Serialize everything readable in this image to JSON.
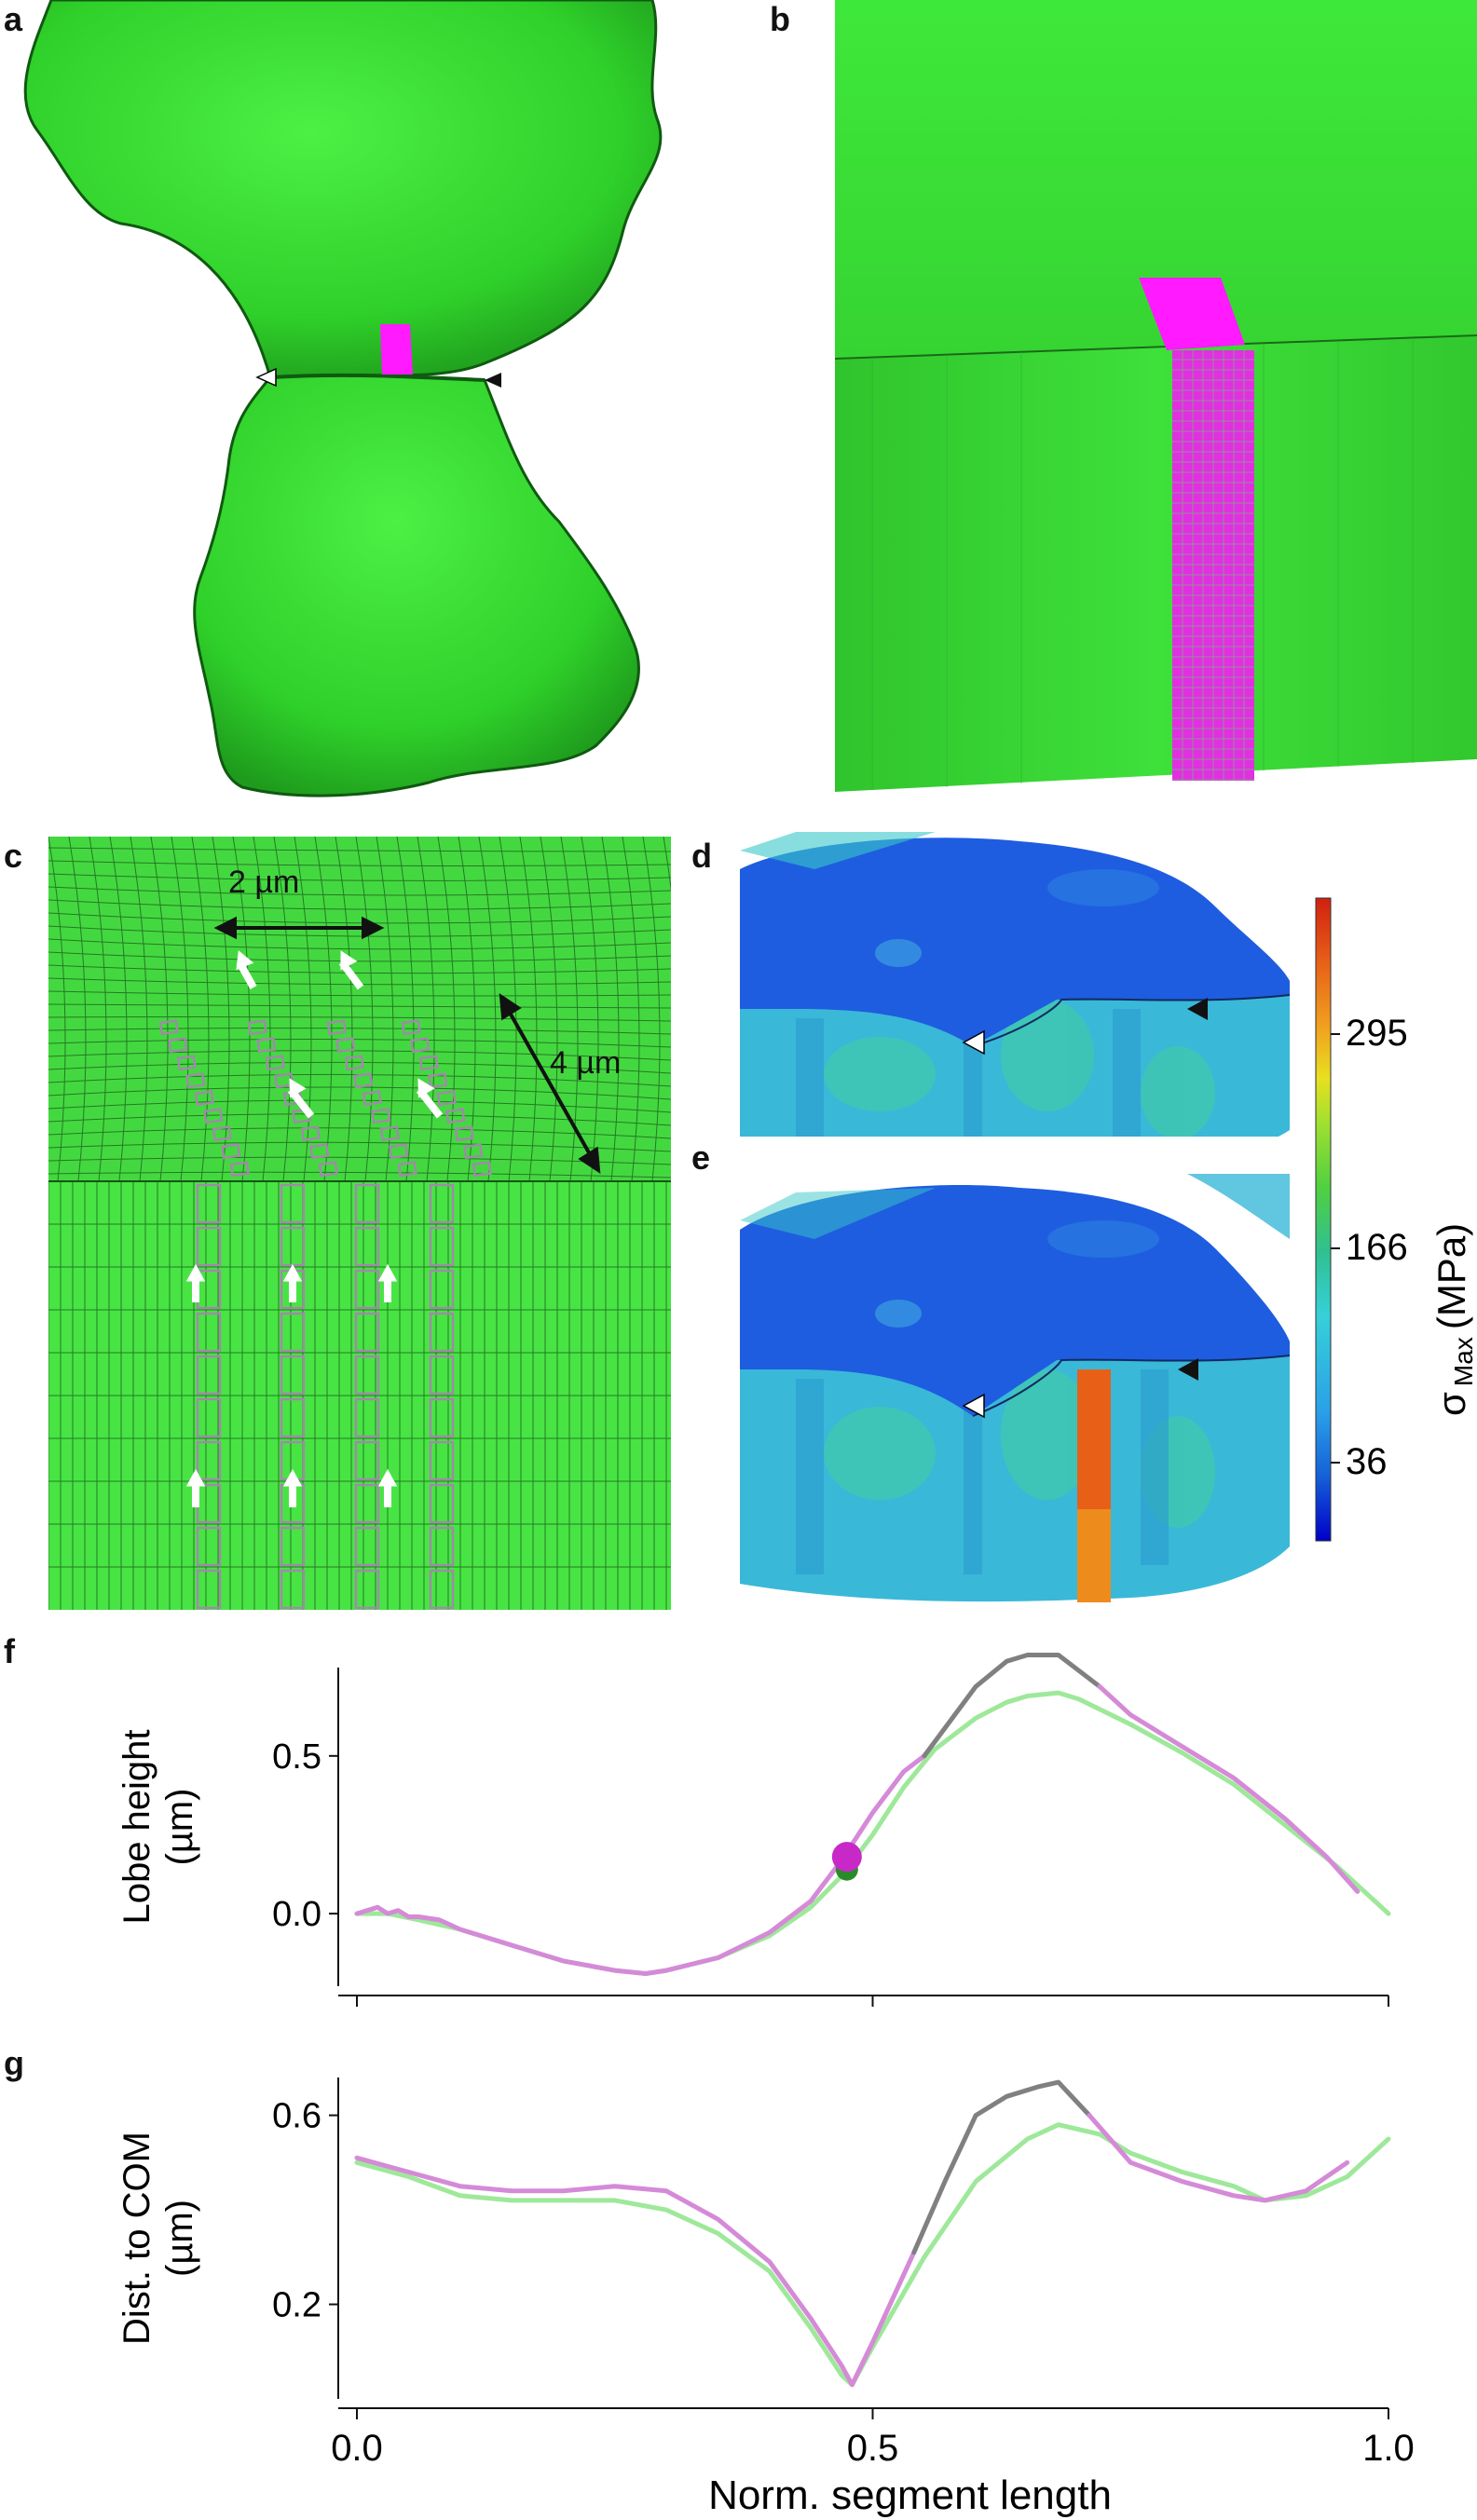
{
  "panels": {
    "a": {
      "letter": "a"
    },
    "b": {
      "letter": "b"
    },
    "c": {
      "letter": "c",
      "scale_horizontal": "2 µm",
      "scale_diagonal": "4 µm"
    },
    "d": {
      "letter": "d"
    },
    "e": {
      "letter": "e"
    },
    "f": {
      "letter": "f"
    },
    "g": {
      "letter": "g"
    }
  },
  "colorbar": {
    "label_main": "σ",
    "label_sub": "Max",
    "label_unit": "(MPa)",
    "ticks": [
      "295",
      "166",
      "36"
    ],
    "colors": [
      "#0000c8",
      "#1560d8",
      "#2aa0e8",
      "#36d0d8",
      "#30c090",
      "#50d040",
      "#a0e030",
      "#e8e020",
      "#f0a020",
      "#e86018",
      "#d02010"
    ]
  },
  "colors": {
    "cell_green": "#3ee03a",
    "magenta": "#ff1aff",
    "pink_line": "#d58ad8",
    "light_green_line": "#9ee89a",
    "gray_line": "#808080",
    "marker_magenta": "#c828c8",
    "marker_green": "#2a8a2a"
  },
  "chart_data": [
    {
      "panel": "f",
      "type": "line",
      "title": "",
      "xlabel": "",
      "ylabel": "Lobe height (µm)",
      "ylabel_lines": [
        "Lobe height",
        "(µm)"
      ],
      "xlim": [
        0.0,
        1.0
      ],
      "ylim": [
        -0.23,
        0.78
      ],
      "yticks": [
        "0.0",
        "0.5"
      ],
      "ytick_values": [
        0.0,
        0.5
      ],
      "xtick_values": [
        0.0,
        0.5,
        1.0
      ],
      "series": [
        {
          "color": "#9ee89a",
          "x": [
            0,
            0.03,
            0.06,
            0.1,
            0.15,
            0.2,
            0.25,
            0.28,
            0.3,
            0.35,
            0.4,
            0.44,
            0.47,
            0.5,
            0.53,
            0.56,
            0.6,
            0.63,
            0.65,
            0.68,
            0.7,
            0.75,
            0.8,
            0.85,
            0.9,
            0.95,
            1.0
          ],
          "y": [
            0.0,
            0.0,
            -0.02,
            -0.05,
            -0.1,
            -0.15,
            -0.18,
            -0.19,
            -0.18,
            -0.14,
            -0.07,
            0.02,
            0.12,
            0.25,
            0.4,
            0.52,
            0.62,
            0.67,
            0.69,
            0.7,
            0.68,
            0.6,
            0.51,
            0.41,
            0.28,
            0.15,
            0.0
          ]
        },
        {
          "color": "#d58ad8",
          "x": [
            0,
            0.02,
            0.03,
            0.04,
            0.05,
            0.06,
            0.08,
            0.1,
            0.15,
            0.2,
            0.25,
            0.28,
            0.3,
            0.35,
            0.4,
            0.44,
            0.47,
            0.5,
            0.53,
            0.55
          ],
          "y": [
            0.0,
            0.02,
            0.0,
            0.01,
            -0.01,
            -0.01,
            -0.02,
            -0.05,
            -0.1,
            -0.15,
            -0.18,
            -0.19,
            -0.18,
            -0.14,
            -0.06,
            0.04,
            0.17,
            0.32,
            0.45,
            0.5
          ]
        },
        {
          "color": "#808080",
          "x": [
            0.55,
            0.6,
            0.63,
            0.65,
            0.68,
            0.72
          ],
          "y": [
            0.5,
            0.72,
            0.8,
            0.82,
            0.82,
            0.72
          ]
        },
        {
          "color": "#d58ad8",
          "x": [
            0.72,
            0.75,
            0.8,
            0.85,
            0.9,
            0.94,
            0.97
          ],
          "y": [
            0.72,
            0.63,
            0.53,
            0.43,
            0.3,
            0.18,
            0.07
          ]
        }
      ],
      "markers": [
        {
          "x": 0.475,
          "y": 0.14,
          "color": "#2a8a2a",
          "r": 12
        },
        {
          "x": 0.475,
          "y": 0.18,
          "color": "#c828c8",
          "r": 16
        }
      ]
    },
    {
      "panel": "g",
      "type": "line",
      "title": "",
      "xlabel": "Norm. segment length",
      "ylabel": "Dist. to COM (µm)",
      "ylabel_lines": [
        "Dist. to COM",
        "(µm)"
      ],
      "xlim": [
        0.0,
        1.0
      ],
      "ylim": [
        0.0,
        0.68
      ],
      "yticks": [
        "0.2",
        "0.6"
      ],
      "ytick_values": [
        0.2,
        0.6
      ],
      "xticks": [
        "0.0",
        "0.5",
        "1.0"
      ],
      "xtick_values": [
        0.0,
        0.5,
        1.0
      ],
      "series": [
        {
          "color": "#9ee89a",
          "x": [
            0,
            0.05,
            0.1,
            0.15,
            0.2,
            0.25,
            0.3,
            0.35,
            0.4,
            0.44,
            0.47,
            0.48,
            0.5,
            0.55,
            0.6,
            0.65,
            0.68,
            0.72,
            0.75,
            0.8,
            0.85,
            0.88,
            0.92,
            0.96,
            1.0
          ],
          "y": [
            0.5,
            0.47,
            0.43,
            0.42,
            0.42,
            0.42,
            0.4,
            0.35,
            0.27,
            0.15,
            0.05,
            0.03,
            0.11,
            0.3,
            0.46,
            0.55,
            0.58,
            0.56,
            0.52,
            0.48,
            0.45,
            0.42,
            0.43,
            0.47,
            0.55
          ]
        },
        {
          "color": "#d58ad8",
          "x": [
            0,
            0.05,
            0.1,
            0.15,
            0.2,
            0.25,
            0.3,
            0.35,
            0.4,
            0.44,
            0.47,
            0.48,
            0.5,
            0.54
          ],
          "y": [
            0.51,
            0.48,
            0.45,
            0.44,
            0.44,
            0.45,
            0.44,
            0.38,
            0.29,
            0.17,
            0.07,
            0.03,
            0.12,
            0.31
          ]
        },
        {
          "color": "#808080",
          "x": [
            0.54,
            0.57,
            0.6,
            0.63,
            0.66,
            0.68,
            0.71
          ],
          "y": [
            0.31,
            0.46,
            0.6,
            0.64,
            0.66,
            0.67,
            0.6
          ]
        },
        {
          "color": "#d58ad8",
          "x": [
            0.71,
            0.75,
            0.8,
            0.85,
            0.88,
            0.92,
            0.96
          ],
          "y": [
            0.6,
            0.5,
            0.46,
            0.43,
            0.42,
            0.44,
            0.5
          ]
        }
      ],
      "markers": []
    }
  ]
}
